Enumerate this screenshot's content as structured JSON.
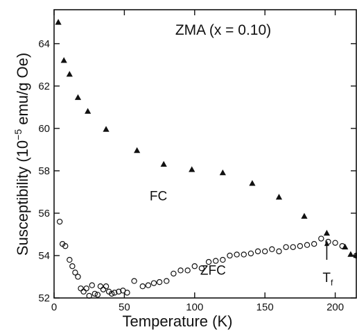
{
  "chart_data": {
    "type": "scatter",
    "title": "ZMA (x = 0.10)",
    "xlabel": "Temperature (K)",
    "ylabel_main": "Susceptibility (10",
    "ylabel_exp": "−5",
    "ylabel_unit": " emu/g Oe)",
    "xlim": [
      0,
      215
    ],
    "ylim": [
      52,
      65.6
    ],
    "x_ticks": [
      0,
      50,
      100,
      150,
      200
    ],
    "x_tick_labels": [
      "0",
      "50",
      "100",
      "150",
      "200"
    ],
    "y_ticks": [
      52,
      54,
      56,
      58,
      60,
      62,
      64
    ],
    "y_tick_labels": [
      "52",
      "54",
      "56",
      "58",
      "60",
      "62",
      "64"
    ],
    "grid": false,
    "colors": {
      "marks": "#111111",
      "background": "#ffffff"
    },
    "series": [
      {
        "name": "FC",
        "marker": "filled-triangle",
        "label_at": [
          68,
          56.6
        ],
        "x": [
          3,
          7,
          11,
          17,
          24,
          37,
          59,
          78,
          98,
          120,
          141,
          160,
          178,
          194,
          207,
          211,
          215
        ],
        "y": [
          65.0,
          63.2,
          62.55,
          61.45,
          60.8,
          59.95,
          58.95,
          58.3,
          58.05,
          57.9,
          57.4,
          56.75,
          55.85,
          55.05,
          54.4,
          54.05,
          54.0
        ]
      },
      {
        "name": "ZFC",
        "marker": "open-circle",
        "label_at": [
          104,
          53.1
        ],
        "x": [
          4,
          6,
          8,
          11,
          13,
          15,
          17,
          19,
          21,
          23,
          25,
          27,
          29,
          31,
          33,
          35,
          37,
          39,
          41,
          43,
          46,
          49,
          52,
          57,
          63,
          67,
          71,
          75,
          80,
          85,
          90,
          95,
          100,
          105,
          110,
          115,
          120,
          125,
          130,
          135,
          140,
          145,
          150,
          155,
          160,
          165,
          170,
          175,
          180,
          185,
          190,
          195,
          200,
          205,
          215
        ],
        "y": [
          55.6,
          54.55,
          54.45,
          53.8,
          53.5,
          53.2,
          53.0,
          52.45,
          52.3,
          52.45,
          52.1,
          52.6,
          52.2,
          52.15,
          52.55,
          52.4,
          52.55,
          52.3,
          52.2,
          52.25,
          52.3,
          52.35,
          52.25,
          52.8,
          52.55,
          52.6,
          52.7,
          52.75,
          52.8,
          53.15,
          53.3,
          53.3,
          53.5,
          53.4,
          53.7,
          53.75,
          53.8,
          54.0,
          54.05,
          54.05,
          54.1,
          54.2,
          54.2,
          54.3,
          54.2,
          54.4,
          54.4,
          54.45,
          54.5,
          54.55,
          54.8,
          54.65,
          54.6,
          54.45,
          54.0
        ]
      }
    ],
    "annotation": {
      "label_main": "T",
      "label_sub": "f",
      "arrow_x": 194,
      "arrow_from_y": 53.8,
      "arrow_to_y": 54.65,
      "label_at": [
        194,
        52.75
      ]
    }
  }
}
